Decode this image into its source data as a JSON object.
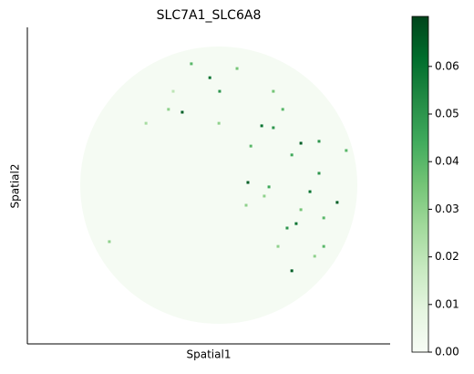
{
  "chart_data": {
    "type": "scatter",
    "title": "SLC7A1_SLC6A8",
    "x_label": "Spatial1",
    "y_label": "Spatial2",
    "xlim": [
      0,
      100
    ],
    "ylim": [
      0,
      100
    ],
    "colormap": "Greens",
    "clim": [
      0,
      0.0705
    ],
    "cticks": [
      {
        "value": 0,
        "label": "0.00"
      },
      {
        "value": 0.01,
        "label": "0.01"
      },
      {
        "value": 0.02,
        "label": "0.02"
      },
      {
        "value": 0.03,
        "label": "0.03"
      },
      {
        "value": 0.04,
        "label": "0.04"
      },
      {
        "value": 0.05,
        "label": "0.05"
      },
      {
        "value": 0.06,
        "label": "0.06"
      }
    ],
    "x": [
      50.3,
      53.0,
      42.7,
      64.6,
      67.8,
      75.4,
      80.4,
      60.8,
      72.9,
      77.9,
      85.4,
      74.1,
      71.6,
      72.9,
      69.1,
      81.7,
      38.9,
      32.7,
      52.8,
      45.2,
      57.8,
      67.8,
      61.6,
      87.9,
      80.4,
      66.6,
      75.4,
      79.2,
      22.6,
      40.2,
      60.3,
      70.4,
      81.7,
      65.3
    ],
    "y": [
      84.1,
      79.8,
      73.2,
      68.9,
      68.3,
      63.4,
      64.0,
      51.0,
      59.7,
      48.1,
      44.7,
      38.0,
      36.6,
      23.1,
      30.8,
      30.8,
      74.1,
      69.7,
      69.7,
      88.5,
      87.0,
      79.8,
      62.5,
      61.1,
      53.9,
      49.6,
      42.4,
      27.7,
      32.3,
      79.8,
      43.8,
      74.1,
      39.8,
      46.7
    ],
    "values": [
      0.06,
      0.05,
      0.065,
      0.06,
      0.05,
      0.065,
      0.05,
      0.065,
      0.045,
      0.06,
      0.065,
      0.06,
      0.05,
      0.065,
      0.03,
      0.04,
      0.03,
      0.025,
      0.03,
      0.04,
      0.035,
      0.035,
      0.04,
      0.04,
      0.05,
      0.045,
      0.035,
      0.03,
      0.03,
      0.02,
      0.03,
      0.04,
      0.04,
      0.03
    ]
  }
}
